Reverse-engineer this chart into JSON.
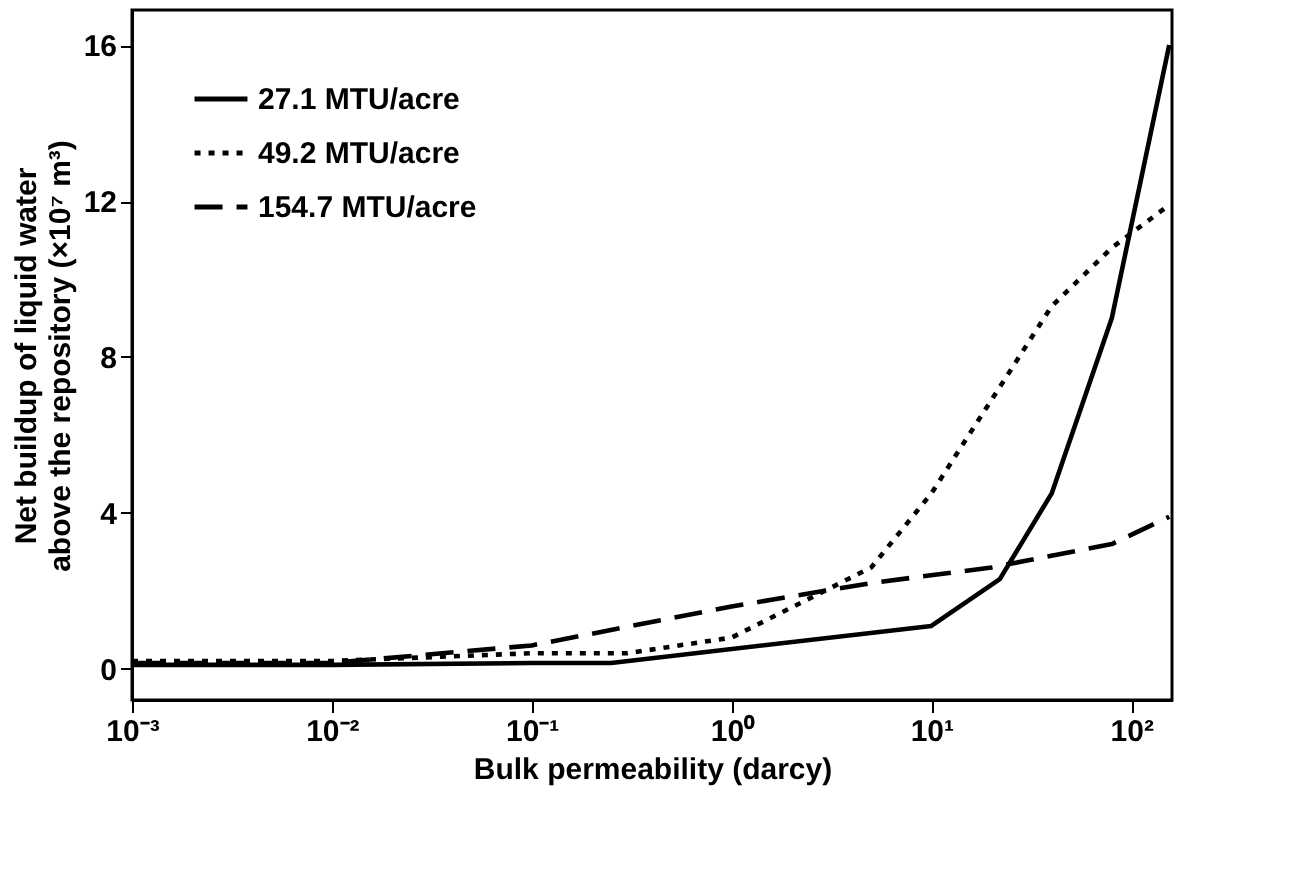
{
  "chart_data": {
    "type": "line",
    "xlabel": "Bulk permeability (darcy)",
    "ylabel": "Net buildup of liquid water\nabove the repository (×10⁷ m³)",
    "log": "x",
    "xlim": [
      0.001,
      160
    ],
    "ylim": [
      -0.8,
      16.9
    ],
    "xticks": [
      {
        "value": 0.001,
        "label": "10⁻³"
      },
      {
        "value": 0.01,
        "label": "10⁻²"
      },
      {
        "value": 0.1,
        "label": "10⁻¹"
      },
      {
        "value": 1,
        "label": "10⁰"
      },
      {
        "value": 10,
        "label": "10¹"
      },
      {
        "value": 100,
        "label": "10²"
      }
    ],
    "yticks": [
      0,
      4,
      8,
      12,
      16
    ],
    "grid": false,
    "legend": "top left",
    "marker": "none",
    "series": [
      {
        "name": "27.1 MTU/acre",
        "color": "#000000",
        "line_style": "solid",
        "x": [
          0.001,
          0.01,
          0.1,
          0.25,
          10,
          22,
          40,
          80,
          155
        ],
        "values": [
          0.1,
          0.1,
          0.15,
          0.15,
          1.1,
          2.3,
          4.5,
          9,
          16
        ]
      },
      {
        "name": "49.2 MTU/acre",
        "color": "#000000",
        "line_style": "dotted",
        "x": [
          0.001,
          0.01,
          0.1,
          0.3,
          1,
          5,
          10,
          40,
          80,
          155
        ],
        "values": [
          0.2,
          0.2,
          0.4,
          0.4,
          0.8,
          2.6,
          4.5,
          9.3,
          10.8,
          11.9
        ]
      },
      {
        "name": "154.7 MTU/acre",
        "color": "#000000",
        "line_style": "dashed",
        "x": [
          0.001,
          0.01,
          0.1,
          1,
          5,
          20,
          80,
          155
        ],
        "values": [
          0.15,
          0.15,
          0.6,
          1.6,
          2.2,
          2.6,
          3.2,
          3.9
        ]
      }
    ]
  }
}
